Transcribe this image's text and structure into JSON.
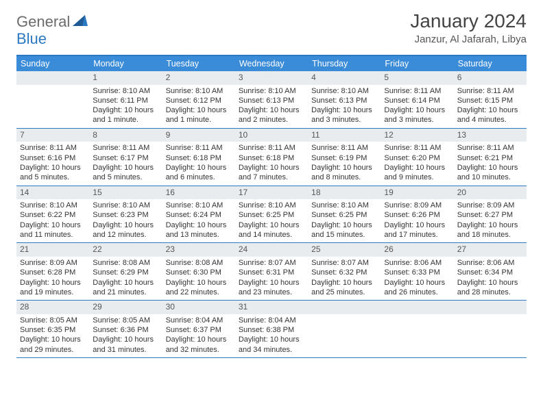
{
  "logo": {
    "text1": "General",
    "text2": "Blue"
  },
  "title": "January 2024",
  "location": "Janzur, Al Jafarah, Libya",
  "colors": {
    "header_bg": "#3a8bd8",
    "border": "#2b79c2",
    "daynum_bg": "#e9ecef",
    "logo_gray": "#6b6b6b",
    "logo_blue": "#2b79c2"
  },
  "dayHeaders": [
    "Sunday",
    "Monday",
    "Tuesday",
    "Wednesday",
    "Thursday",
    "Friday",
    "Saturday"
  ],
  "weeks": [
    [
      {
        "day": "",
        "sunrise": "",
        "sunset": "",
        "daylight": ""
      },
      {
        "day": "1",
        "sunrise": "8:10 AM",
        "sunset": "6:11 PM",
        "daylight": "10 hours and 1 minute."
      },
      {
        "day": "2",
        "sunrise": "8:10 AM",
        "sunset": "6:12 PM",
        "daylight": "10 hours and 1 minute."
      },
      {
        "day": "3",
        "sunrise": "8:10 AM",
        "sunset": "6:13 PM",
        "daylight": "10 hours and 2 minutes."
      },
      {
        "day": "4",
        "sunrise": "8:10 AM",
        "sunset": "6:13 PM",
        "daylight": "10 hours and 3 minutes."
      },
      {
        "day": "5",
        "sunrise": "8:11 AM",
        "sunset": "6:14 PM",
        "daylight": "10 hours and 3 minutes."
      },
      {
        "day": "6",
        "sunrise": "8:11 AM",
        "sunset": "6:15 PM",
        "daylight": "10 hours and 4 minutes."
      }
    ],
    [
      {
        "day": "7",
        "sunrise": "8:11 AM",
        "sunset": "6:16 PM",
        "daylight": "10 hours and 5 minutes."
      },
      {
        "day": "8",
        "sunrise": "8:11 AM",
        "sunset": "6:17 PM",
        "daylight": "10 hours and 5 minutes."
      },
      {
        "day": "9",
        "sunrise": "8:11 AM",
        "sunset": "6:18 PM",
        "daylight": "10 hours and 6 minutes."
      },
      {
        "day": "10",
        "sunrise": "8:11 AM",
        "sunset": "6:18 PM",
        "daylight": "10 hours and 7 minutes."
      },
      {
        "day": "11",
        "sunrise": "8:11 AM",
        "sunset": "6:19 PM",
        "daylight": "10 hours and 8 minutes."
      },
      {
        "day": "12",
        "sunrise": "8:11 AM",
        "sunset": "6:20 PM",
        "daylight": "10 hours and 9 minutes."
      },
      {
        "day": "13",
        "sunrise": "8:11 AM",
        "sunset": "6:21 PM",
        "daylight": "10 hours and 10 minutes."
      }
    ],
    [
      {
        "day": "14",
        "sunrise": "8:10 AM",
        "sunset": "6:22 PM",
        "daylight": "10 hours and 11 minutes."
      },
      {
        "day": "15",
        "sunrise": "8:10 AM",
        "sunset": "6:23 PM",
        "daylight": "10 hours and 12 minutes."
      },
      {
        "day": "16",
        "sunrise": "8:10 AM",
        "sunset": "6:24 PM",
        "daylight": "10 hours and 13 minutes."
      },
      {
        "day": "17",
        "sunrise": "8:10 AM",
        "sunset": "6:25 PM",
        "daylight": "10 hours and 14 minutes."
      },
      {
        "day": "18",
        "sunrise": "8:10 AM",
        "sunset": "6:25 PM",
        "daylight": "10 hours and 15 minutes."
      },
      {
        "day": "19",
        "sunrise": "8:09 AM",
        "sunset": "6:26 PM",
        "daylight": "10 hours and 17 minutes."
      },
      {
        "day": "20",
        "sunrise": "8:09 AM",
        "sunset": "6:27 PM",
        "daylight": "10 hours and 18 minutes."
      }
    ],
    [
      {
        "day": "21",
        "sunrise": "8:09 AM",
        "sunset": "6:28 PM",
        "daylight": "10 hours and 19 minutes."
      },
      {
        "day": "22",
        "sunrise": "8:08 AM",
        "sunset": "6:29 PM",
        "daylight": "10 hours and 21 minutes."
      },
      {
        "day": "23",
        "sunrise": "8:08 AM",
        "sunset": "6:30 PM",
        "daylight": "10 hours and 22 minutes."
      },
      {
        "day": "24",
        "sunrise": "8:07 AM",
        "sunset": "6:31 PM",
        "daylight": "10 hours and 23 minutes."
      },
      {
        "day": "25",
        "sunrise": "8:07 AM",
        "sunset": "6:32 PM",
        "daylight": "10 hours and 25 minutes."
      },
      {
        "day": "26",
        "sunrise": "8:06 AM",
        "sunset": "6:33 PM",
        "daylight": "10 hours and 26 minutes."
      },
      {
        "day": "27",
        "sunrise": "8:06 AM",
        "sunset": "6:34 PM",
        "daylight": "10 hours and 28 minutes."
      }
    ],
    [
      {
        "day": "28",
        "sunrise": "8:05 AM",
        "sunset": "6:35 PM",
        "daylight": "10 hours and 29 minutes."
      },
      {
        "day": "29",
        "sunrise": "8:05 AM",
        "sunset": "6:36 PM",
        "daylight": "10 hours and 31 minutes."
      },
      {
        "day": "30",
        "sunrise": "8:04 AM",
        "sunset": "6:37 PM",
        "daylight": "10 hours and 32 minutes."
      },
      {
        "day": "31",
        "sunrise": "8:04 AM",
        "sunset": "6:38 PM",
        "daylight": "10 hours and 34 minutes."
      },
      {
        "day": "",
        "sunrise": "",
        "sunset": "",
        "daylight": ""
      },
      {
        "day": "",
        "sunrise": "",
        "sunset": "",
        "daylight": ""
      },
      {
        "day": "",
        "sunrise": "",
        "sunset": "",
        "daylight": ""
      }
    ]
  ],
  "labels": {
    "sunrise": "Sunrise:",
    "sunset": "Sunset:",
    "daylight": "Daylight:"
  }
}
